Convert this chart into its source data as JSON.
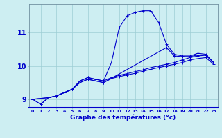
{
  "xlabel": "Graphe des températures (°c)",
  "bg_color": "#cdeef2",
  "grid_color": "#9dcdd4",
  "line_color": "#0000cc",
  "xlim": [
    -0.5,
    23.5
  ],
  "ylim": [
    8.75,
    11.85
  ],
  "xticks": [
    0,
    1,
    2,
    3,
    4,
    5,
    6,
    7,
    8,
    9,
    10,
    11,
    12,
    13,
    14,
    15,
    16,
    17,
    18,
    19,
    20,
    21,
    22,
    23
  ],
  "yticks": [
    9,
    10,
    11
  ],
  "line1_x": [
    0,
    1,
    2,
    3,
    4,
    5,
    6,
    7,
    8,
    9,
    10,
    11,
    12,
    13,
    14,
    15,
    16,
    17,
    18,
    19,
    20,
    21,
    22,
    23
  ],
  "line1_y": [
    9.0,
    8.85,
    9.05,
    9.1,
    9.2,
    9.3,
    9.55,
    9.65,
    9.6,
    9.55,
    10.1,
    11.15,
    11.5,
    11.6,
    11.65,
    11.65,
    11.3,
    10.65,
    10.35,
    10.3,
    10.3,
    10.38,
    10.35,
    10.1
  ],
  "line2_x": [
    0,
    1,
    2,
    3,
    4,
    5,
    6,
    7,
    8,
    9,
    10,
    11,
    12,
    13,
    14,
    15,
    16,
    17,
    18,
    19,
    20,
    21,
    22,
    23
  ],
  "line2_y": [
    9.0,
    8.85,
    9.05,
    9.1,
    9.2,
    9.3,
    9.55,
    9.65,
    9.6,
    9.55,
    9.65,
    9.72,
    9.77,
    9.83,
    9.88,
    9.95,
    10.0,
    10.05,
    10.1,
    10.18,
    10.25,
    10.3,
    10.32,
    10.1
  ],
  "line3_x": [
    0,
    2,
    3,
    4,
    5,
    6,
    7,
    8,
    9,
    10,
    11,
    12,
    13,
    14,
    15,
    16,
    17,
    18,
    19,
    20,
    21,
    22,
    23
  ],
  "line3_y": [
    9.0,
    9.05,
    9.1,
    9.2,
    9.3,
    9.5,
    9.6,
    9.55,
    9.5,
    9.62,
    9.68,
    9.73,
    9.78,
    9.84,
    9.9,
    9.95,
    10.0,
    10.05,
    10.1,
    10.18,
    10.22,
    10.25,
    10.05
  ],
  "line4_x": [
    0,
    2,
    3,
    4,
    5,
    6,
    7,
    8,
    9,
    17,
    18,
    19,
    20,
    21,
    22,
    23
  ],
  "line4_y": [
    9.0,
    9.05,
    9.1,
    9.2,
    9.3,
    9.5,
    9.6,
    9.55,
    9.5,
    10.55,
    10.3,
    10.28,
    10.28,
    10.33,
    10.33,
    10.1
  ]
}
